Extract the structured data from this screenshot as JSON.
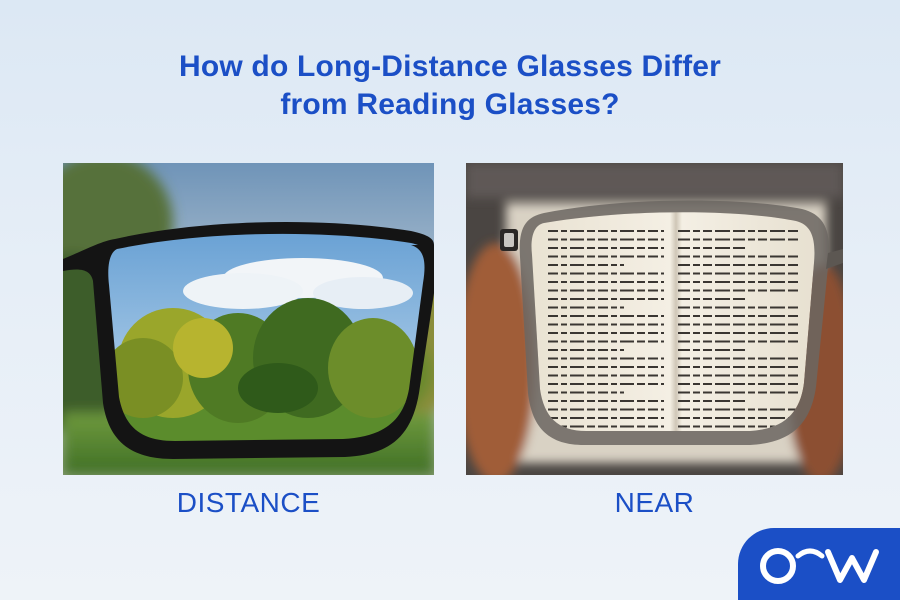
{
  "title": {
    "line1": "How do Long-Distance Glasses Differ",
    "line2": "from Reading Glasses?"
  },
  "panels": [
    {
      "label": "DISTANCE",
      "image": "eyeglass lens focusing on trees and sky in a park"
    },
    {
      "label": "NEAR",
      "image": "eyeglass lens focusing on printed book text"
    }
  ],
  "colors": {
    "heading": "#1b4fc6",
    "background": "#e4edf6",
    "logo_bg": "#1b4fc6"
  },
  "logo": {
    "icon": "brand-logo-icon"
  }
}
